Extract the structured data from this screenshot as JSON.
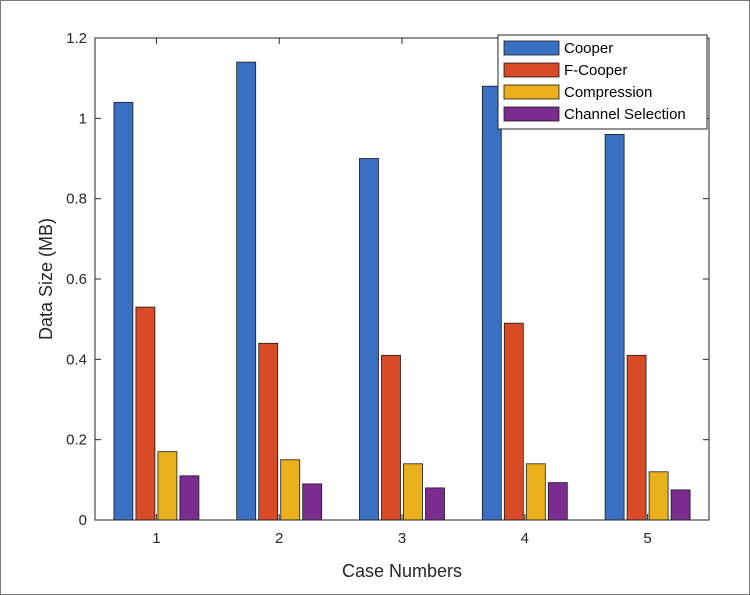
{
  "chart_data": {
    "type": "bar",
    "categories": [
      "1",
      "2",
      "3",
      "4",
      "5"
    ],
    "series": [
      {
        "name": "Cooper",
        "color": "#3a70c2",
        "values": [
          1.04,
          1.14,
          0.9,
          1.08,
          0.96
        ]
      },
      {
        "name": "F-Cooper",
        "color": "#d94a26",
        "values": [
          0.53,
          0.44,
          0.41,
          0.49,
          0.41
        ]
      },
      {
        "name": "Compression",
        "color": "#ebb11d",
        "values": [
          0.17,
          0.15,
          0.14,
          0.14,
          0.12
        ]
      },
      {
        "name": "Channel Selection",
        "color": "#7b2d8f",
        "values": [
          0.11,
          0.09,
          0.08,
          0.093,
          0.075
        ]
      }
    ],
    "xlabel": "Case Numbers",
    "ylabel": "Data Size (MB)",
    "ylim": [
      0,
      1.2
    ],
    "yticks": [
      0,
      0.2,
      0.4,
      0.6,
      0.8,
      1,
      1.2
    ],
    "ytick_labels": [
      "0",
      "0.2",
      "0.4",
      "0.6",
      "0.8",
      "1",
      "1.2"
    ],
    "grid": false,
    "legend_position": "top-right"
  }
}
